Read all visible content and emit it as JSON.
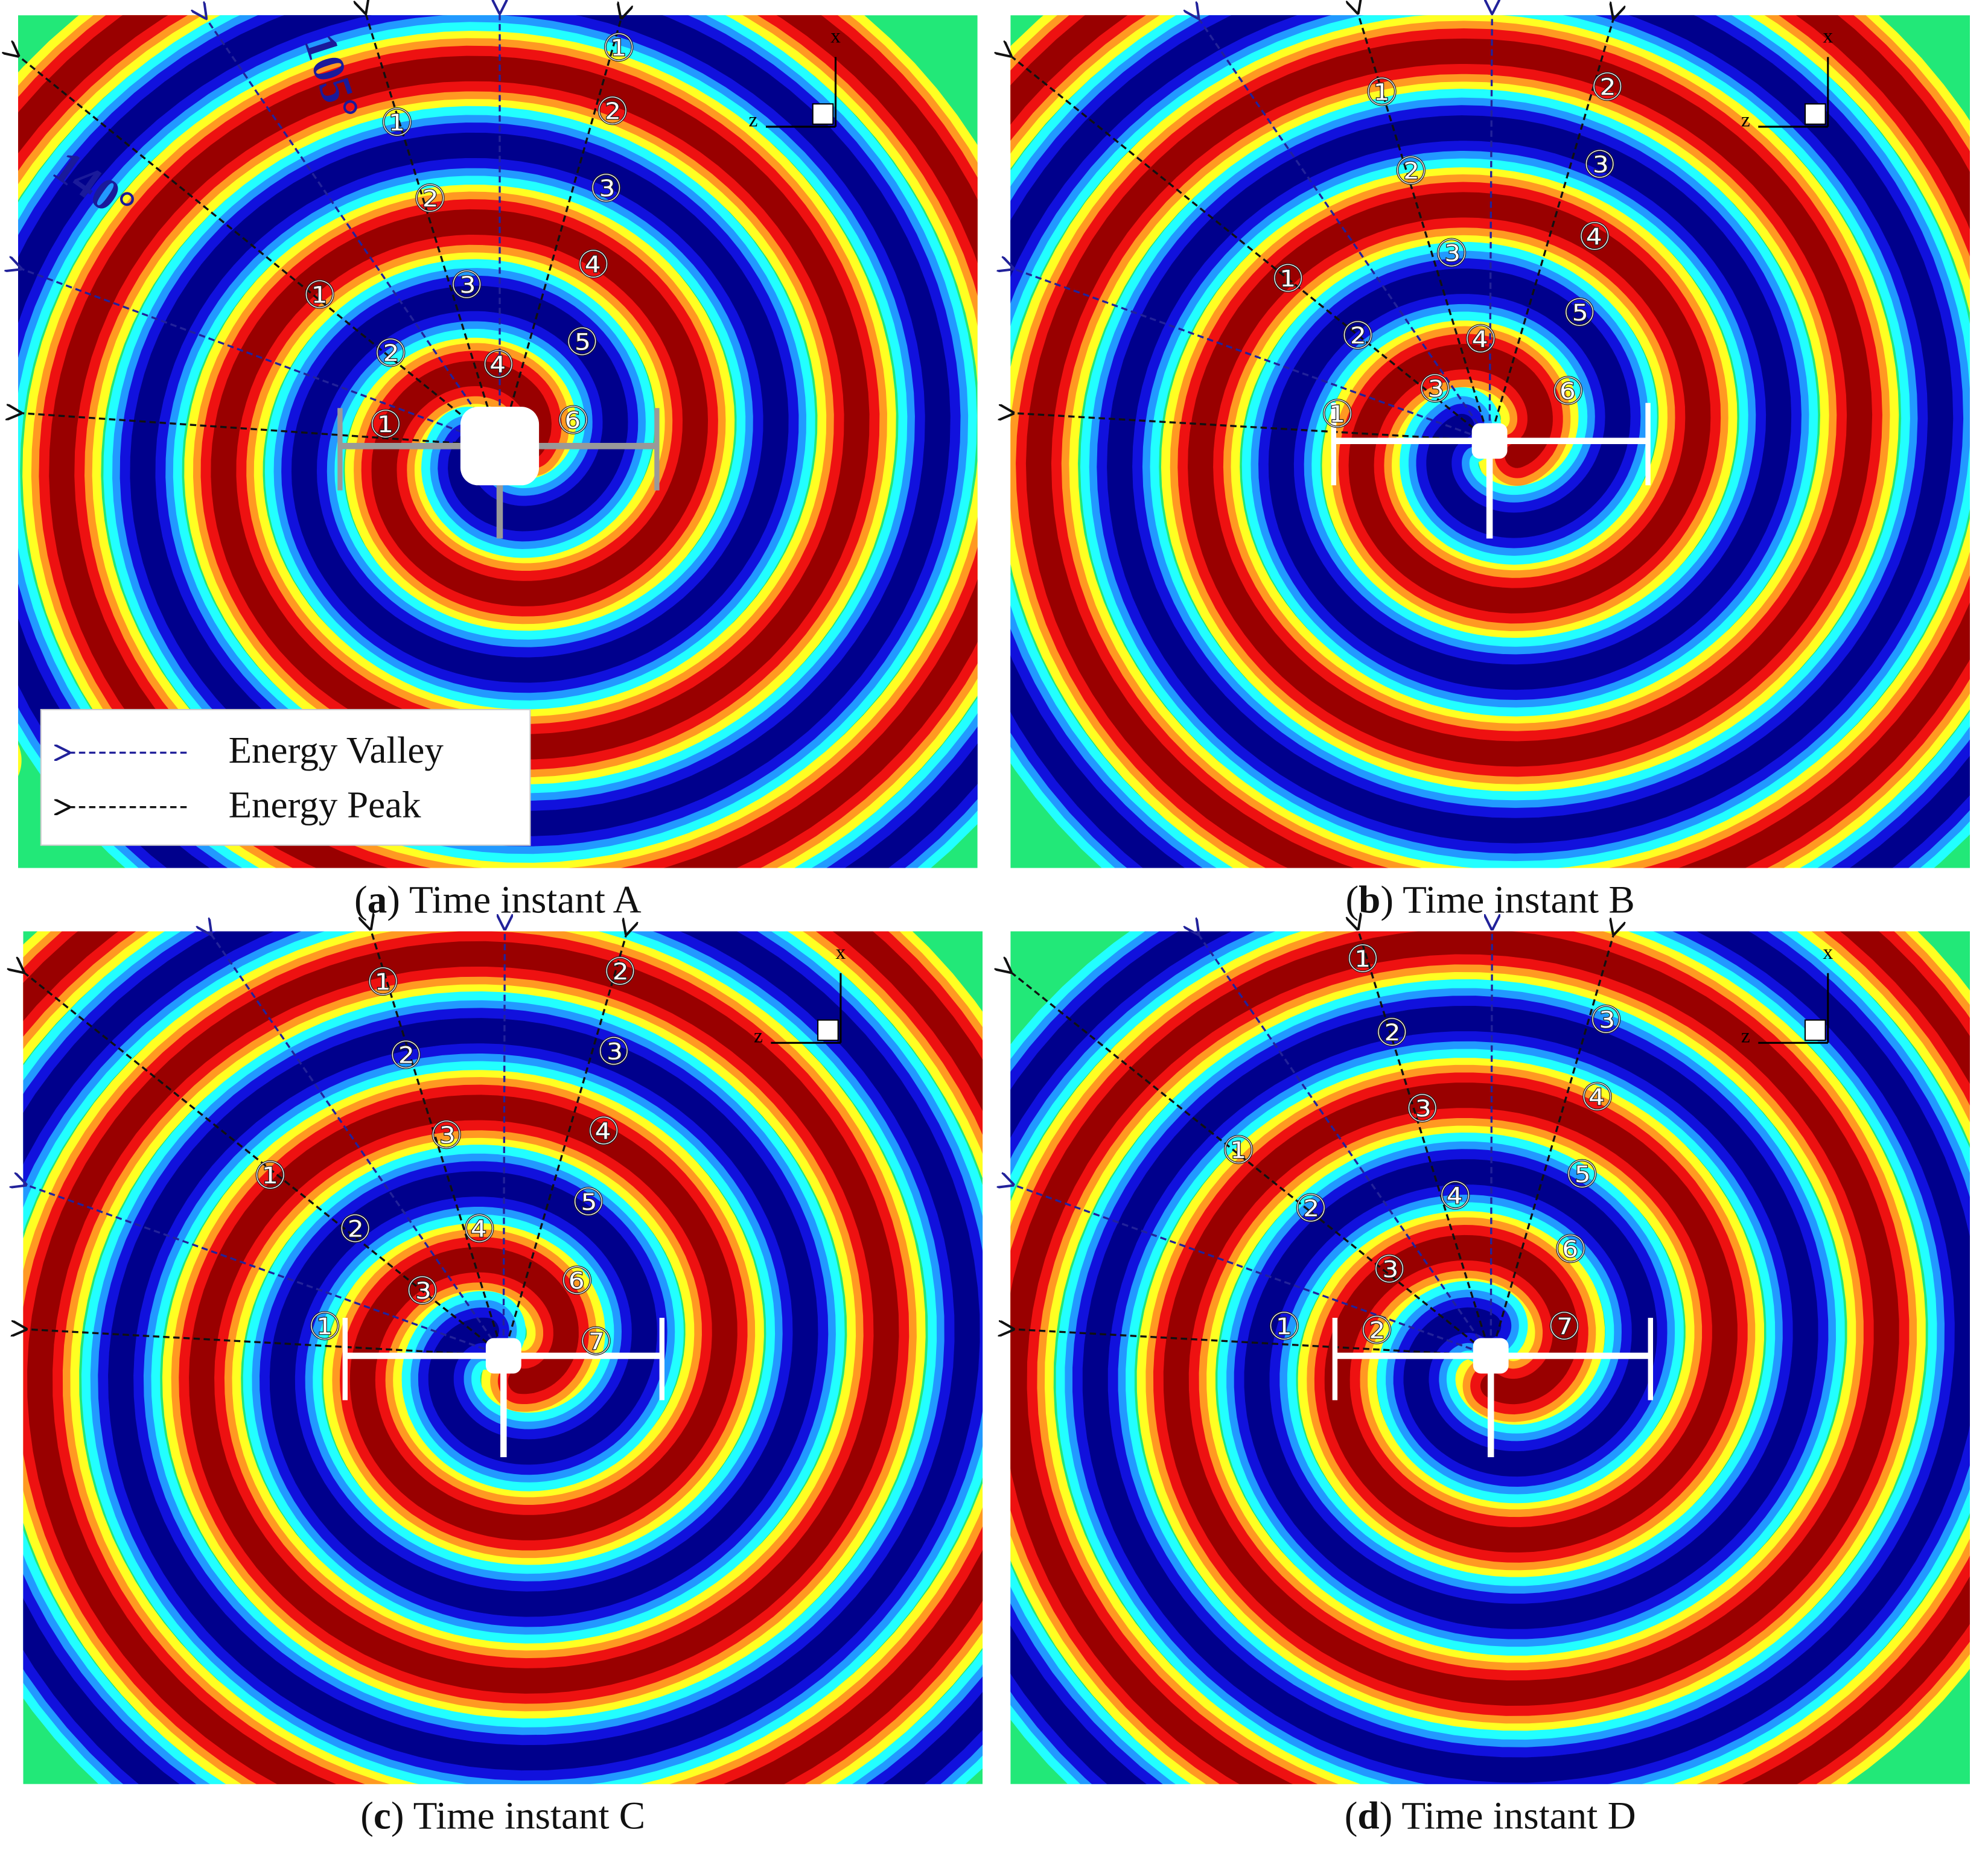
{
  "panels": [
    {
      "caption": [
        "(",
        "a",
        ") Time instant A"
      ],
      "labels": [
        "①",
        "①",
        "②",
        "②",
        "③",
        "①",
        "③",
        "④",
        "②",
        "⑤",
        "④",
        "①",
        "⑥"
      ]
    },
    {
      "caption": [
        "(",
        "b",
        ") Time instant B"
      ],
      "labels": [
        "①",
        "②",
        "②",
        "③",
        "③",
        "④",
        "①",
        "⑤",
        "②",
        "④",
        "③",
        "⑥",
        "①"
      ]
    },
    {
      "caption": [
        "(",
        "c",
        ") Time instant C"
      ],
      "labels": [
        "①",
        "②",
        "②",
        "③",
        "③",
        "④",
        "①",
        "⑤",
        "②",
        "④",
        "③",
        "⑥",
        "①",
        "⑦"
      ]
    },
    {
      "caption": [
        "(",
        "d",
        ") Time instant D"
      ],
      "labels": [
        "①",
        "③",
        "②",
        "④",
        "③",
        "⑤",
        "①",
        "④",
        "②",
        "⑥",
        "③",
        "①",
        "②",
        "⑦"
      ]
    }
  ],
  "legend": {
    "items": [
      "Energy Valley",
      "Energy Peak"
    ]
  },
  "angle_labels": [
    "105°",
    "140°"
  ],
  "axis_labels": [
    "x",
    "z"
  ]
}
